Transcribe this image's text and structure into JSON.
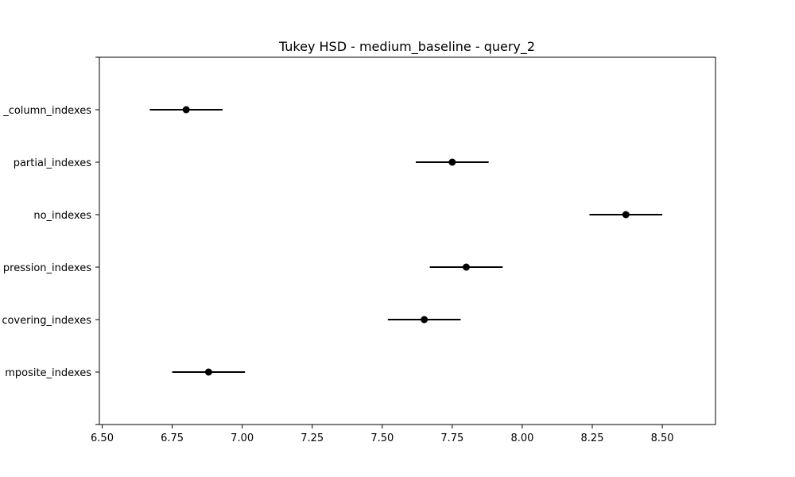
{
  "chart_data": {
    "type": "scatter",
    "title": "Tukey HSD - medium_baseline - query_2",
    "xlabel": "",
    "ylabel": "",
    "xlim": [
      6.49,
      8.69
    ],
    "xticks": [
      6.5,
      6.75,
      7.0,
      7.25,
      7.5,
      7.75,
      8.0,
      8.25,
      8.5
    ],
    "xtick_labels": [
      "6.50",
      "6.75",
      "7.00",
      "7.25",
      "7.50",
      "7.75",
      "8.00",
      "8.25",
      "8.50"
    ],
    "categories": [
      "_column_indexes",
      "partial_indexes",
      "no_indexes",
      "pression_indexes",
      "covering_indexes",
      "mposite_indexes"
    ],
    "series": [
      {
        "means": [
          6.8,
          7.75,
          8.37,
          7.8,
          7.65,
          6.88
        ],
        "ci_low": [
          6.67,
          7.62,
          8.24,
          7.67,
          7.52,
          6.75
        ],
        "ci_high": [
          6.93,
          7.88,
          8.5,
          7.93,
          7.78,
          7.01
        ]
      }
    ],
    "grid": false,
    "marker_color": "#000000"
  }
}
